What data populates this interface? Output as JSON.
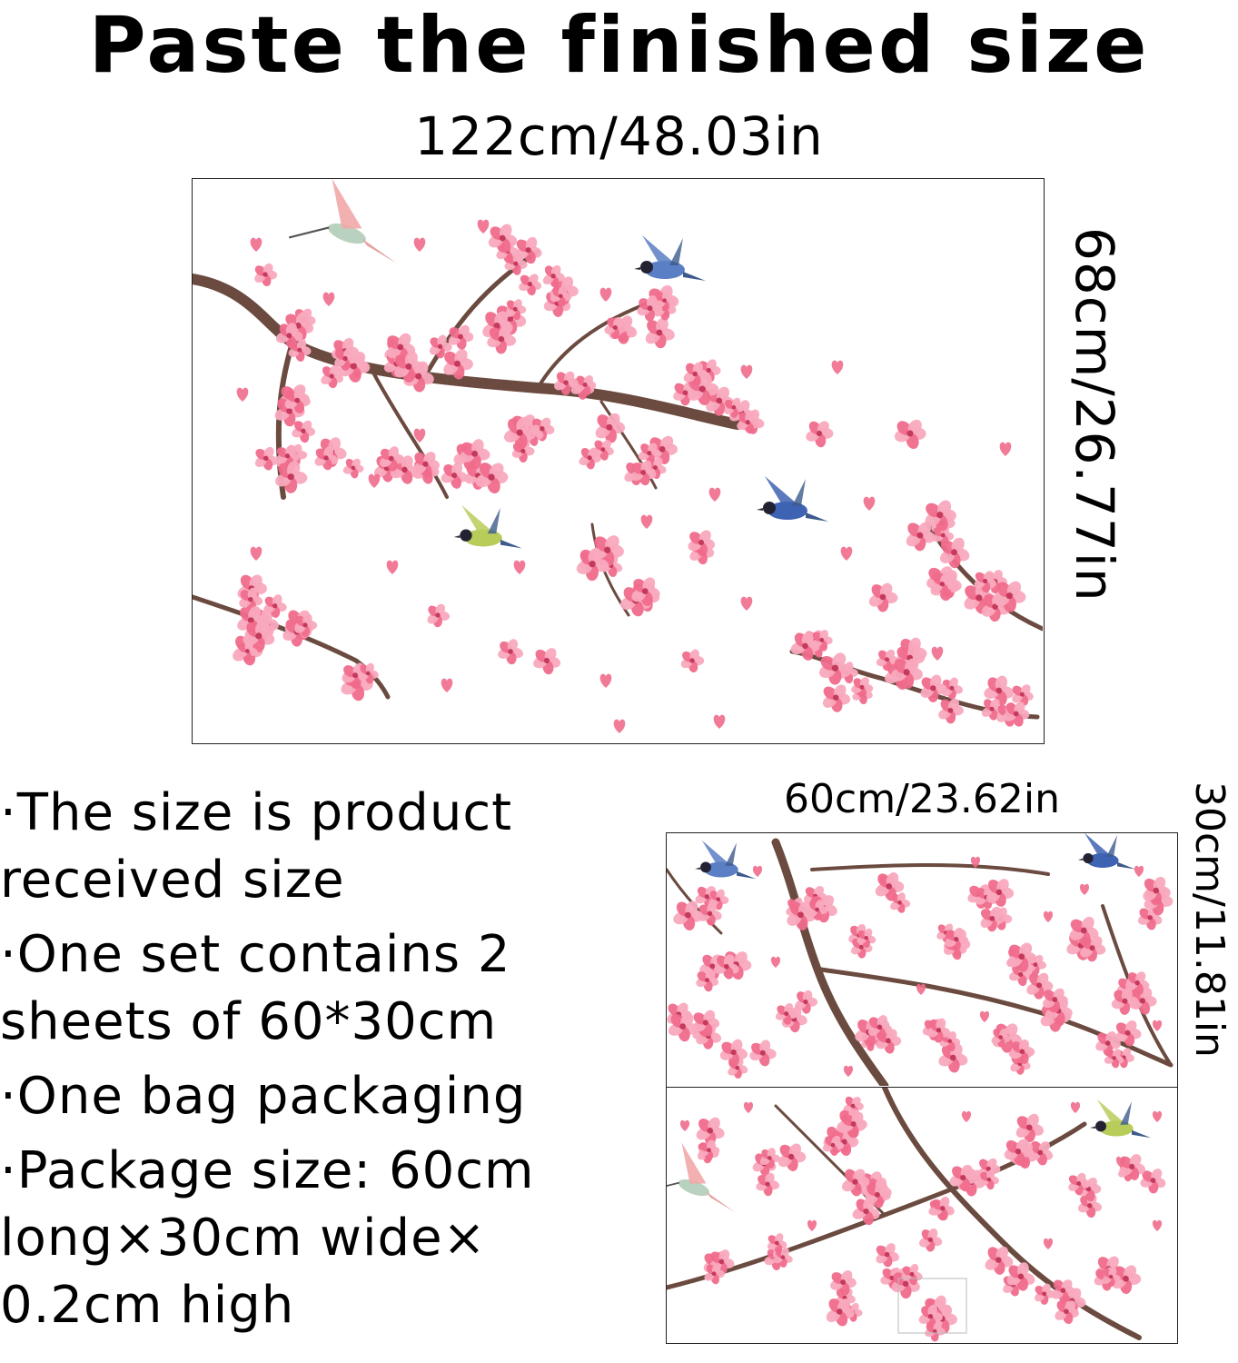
{
  "title": "Paste the finished size",
  "main": {
    "width_label": "122cm/48.03in",
    "height_label": "68cm/26.77in"
  },
  "details": {
    "bullets": [
      "·The size is product received size",
      "·One set contains 2 sheets of 60*30cm",
      "·One bag packaging",
      "·Package size: 60cm long×30cm wide× 0.2cm high"
    ]
  },
  "sheets": {
    "width_label": "60cm/23.62in",
    "height_label": "30cm/11.81in"
  },
  "palette": {
    "blossom": "#f06b8c",
    "blossom_light": "#f9a9be",
    "branch": "#6b4a3f",
    "bird_blue": "#5a7fc4",
    "leaf": "#7fb069"
  }
}
